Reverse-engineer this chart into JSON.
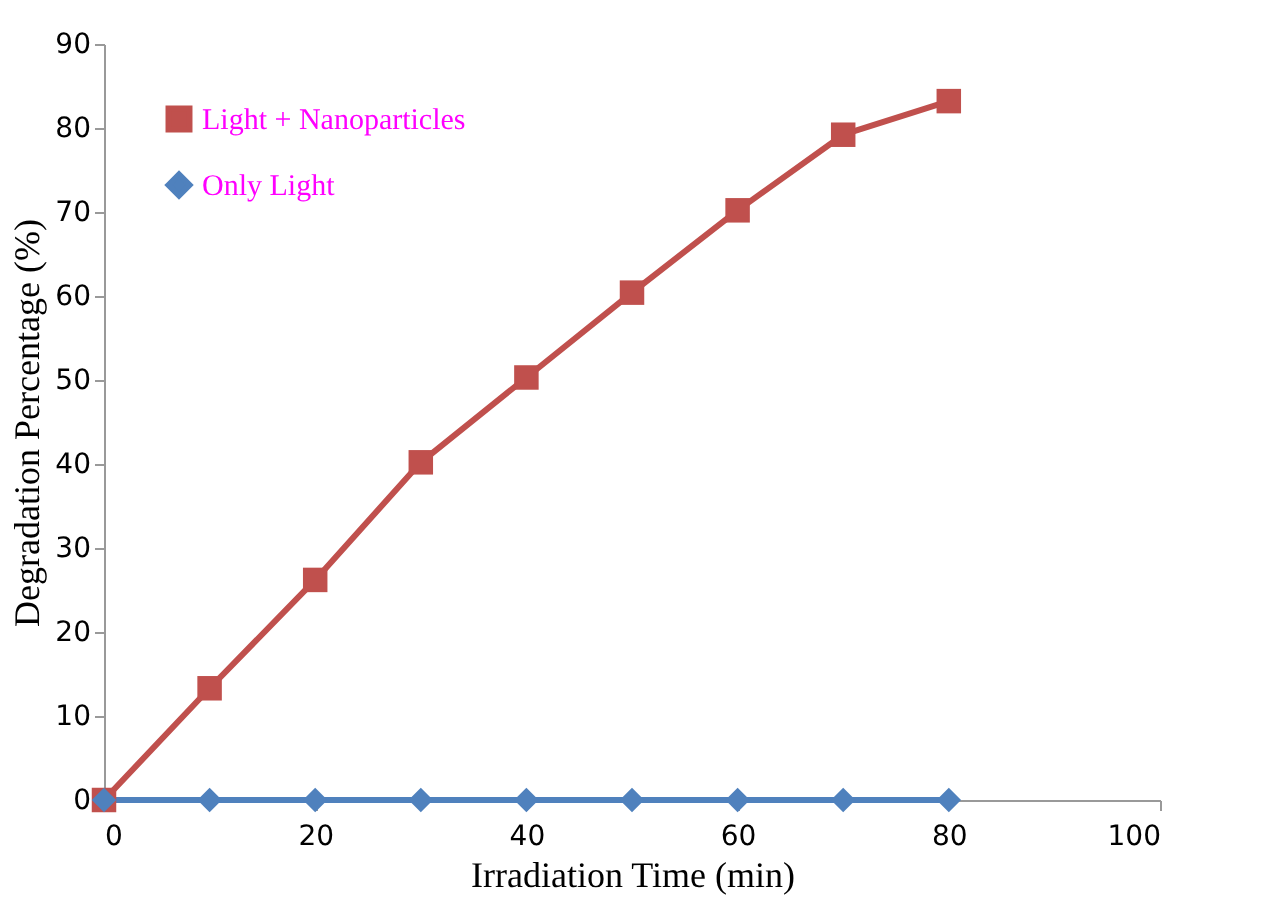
{
  "chart_data": {
    "type": "line",
    "xlabel": "Irradiation Time (min)",
    "ylabel": "Degradation Percentage (%)",
    "x": [
      0,
      10,
      20,
      30,
      40,
      50,
      60,
      70,
      80
    ],
    "series": [
      {
        "name": "Light + Nanoparticles",
        "color": "#c0504d",
        "marker": "square",
        "values": [
          0,
          13.3,
          26.2,
          40.2,
          50.3,
          60.4,
          70.2,
          79.2,
          83.2
        ]
      },
      {
        "name": "Only Light",
        "color": "#4f81bd",
        "marker": "diamond",
        "values": [
          0,
          0,
          0,
          0,
          0,
          0,
          0,
          0,
          0
        ]
      }
    ],
    "xlim": [
      0,
      100
    ],
    "xticks": [
      0,
      20,
      40,
      60,
      80,
      100
    ],
    "ylim": [
      0,
      90
    ],
    "yticks": [
      0,
      10,
      20,
      30,
      40,
      50,
      60,
      70,
      80,
      90
    ],
    "grid": false,
    "legend": "top left",
    "line_style": "solid"
  }
}
